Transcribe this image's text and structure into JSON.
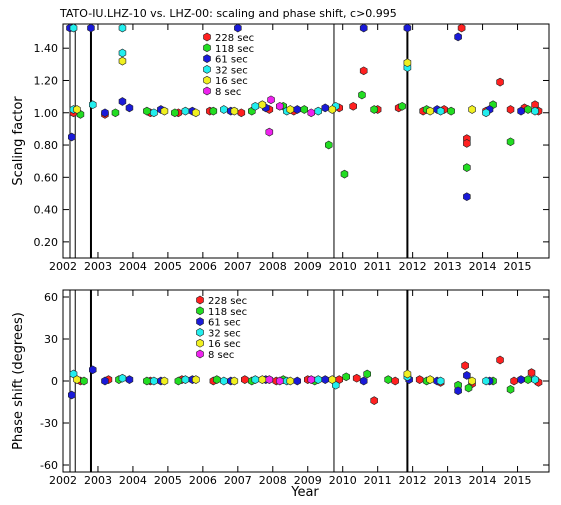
{
  "title": "TATO-IU.LHZ-10 vs. LHZ-00: scaling and phase shift, c>0.995",
  "xlabel": "Year",
  "x_ticks": [
    "2002",
    "2003",
    "2004",
    "2005",
    "2006",
    "2007",
    "2008",
    "2009",
    "2010",
    "2011",
    "2012",
    "2013",
    "2014",
    "2015"
  ],
  "colors": {
    "228 sec": "#ff2020",
    "118 sec": "#22dd22",
    "61 sec": "#1a1ad8",
    "32 sec": "#22eeee",
    "16 sec": "#f0f020",
    "8 sec": "#ee22ee"
  },
  "chart_data": [
    {
      "type": "scatter",
      "ylabel": "Scaling factor",
      "xlim": [
        2002.0,
        2015.9
      ],
      "ylim": [
        0.1,
        1.55
      ],
      "y_ticks": [
        "0.20",
        "0.40",
        "0.60",
        "0.80",
        "1.00",
        "1.20",
        "1.40"
      ],
      "legend": [
        "228 sec",
        "118 sec",
        "61 sec",
        "32 sec",
        "16 sec",
        "8 sec"
      ],
      "legend_placement": "top-center",
      "vlines": [
        2002.2,
        2002.35,
        2002.8,
        2009.75,
        2011.85
      ],
      "series": [
        {
          "name": "228 sec",
          "points": [
            [
              2002.3,
              1.0
            ],
            [
              2003.2,
              0.99
            ],
            [
              2004.5,
              1.0
            ],
            [
              2005.3,
              1.0
            ],
            [
              2006.2,
              1.01
            ],
            [
              2007.1,
              1.0
            ],
            [
              2007.9,
              1.02
            ],
            [
              2008.6,
              1.01
            ],
            [
              2009.9,
              1.03
            ],
            [
              2010.3,
              1.04
            ],
            [
              2010.6,
              1.26
            ],
            [
              2011.0,
              1.02
            ],
            [
              2011.6,
              1.03
            ],
            [
              2012.3,
              1.01
            ],
            [
              2012.9,
              1.02
            ],
            [
              2013.4,
              1.55
            ],
            [
              2013.55,
              0.84
            ],
            [
              2013.55,
              0.81
            ],
            [
              2014.1,
              1.01
            ],
            [
              2014.5,
              1.19
            ],
            [
              2014.8,
              1.02
            ],
            [
              2015.2,
              1.03
            ],
            [
              2015.5,
              1.05
            ],
            [
              2015.6,
              1.01
            ]
          ]
        },
        {
          "name": "118 sec",
          "points": [
            [
              2002.5,
              0.99
            ],
            [
              2003.5,
              1.0
            ],
            [
              2004.4,
              1.01
            ],
            [
              2005.2,
              1.0
            ],
            [
              2006.3,
              1.01
            ],
            [
              2007.4,
              1.01
            ],
            [
              2008.3,
              1.04
            ],
            [
              2008.9,
              1.02
            ],
            [
              2009.6,
              0.8
            ],
            [
              2010.05,
              0.62
            ],
            [
              2010.55,
              1.11
            ],
            [
              2010.9,
              1.02
            ],
            [
              2011.7,
              1.04
            ],
            [
              2012.4,
              1.02
            ],
            [
              2013.1,
              1.01
            ],
            [
              2013.55,
              0.66
            ],
            [
              2014.3,
              1.05
            ],
            [
              2014.8,
              0.82
            ],
            [
              2015.3,
              1.02
            ]
          ]
        },
        {
          "name": "61 sec",
          "points": [
            [
              2002.2,
              1.55
            ],
            [
              2002.25,
              0.85
            ],
            [
              2002.8,
              1.55
            ],
            [
              2003.2,
              1.0
            ],
            [
              2003.7,
              1.07
            ],
            [
              2003.9,
              1.03
            ],
            [
              2004.8,
              1.02
            ],
            [
              2005.7,
              1.01
            ],
            [
              2006.8,
              1.01
            ],
            [
              2007.0,
              1.55
            ],
            [
              2007.8,
              1.03
            ],
            [
              2008.7,
              1.02
            ],
            [
              2009.5,
              1.03
            ],
            [
              2010.6,
              1.55
            ],
            [
              2011.85,
              1.55
            ],
            [
              2012.7,
              1.02
            ],
            [
              2013.3,
              1.47
            ],
            [
              2013.55,
              0.48
            ],
            [
              2014.2,
              1.02
            ],
            [
              2015.1,
              1.01
            ]
          ]
        },
        {
          "name": "32 sec",
          "points": [
            [
              2002.3,
              1.55
            ],
            [
              2002.3,
              1.02
            ],
            [
              2002.85,
              1.05
            ],
            [
              2003.7,
              1.55
            ],
            [
              2003.7,
              1.37
            ],
            [
              2004.6,
              1.0
            ],
            [
              2005.5,
              1.01
            ],
            [
              2006.6,
              1.02
            ],
            [
              2007.5,
              1.04
            ],
            [
              2008.4,
              1.01
            ],
            [
              2009.3,
              1.01
            ],
            [
              2009.8,
              1.04
            ],
            [
              2011.85,
              1.28
            ],
            [
              2012.8,
              1.01
            ],
            [
              2014.1,
              1.0
            ],
            [
              2015.5,
              1.01
            ]
          ]
        },
        {
          "name": "16 sec",
          "points": [
            [
              2002.4,
              1.02
            ],
            [
              2003.7,
              1.32
            ],
            [
              2004.9,
              1.01
            ],
            [
              2005.8,
              1.0
            ],
            [
              2006.9,
              1.01
            ],
            [
              2007.7,
              1.05
            ],
            [
              2008.5,
              1.02
            ],
            [
              2009.7,
              1.02
            ],
            [
              2011.85,
              1.31
            ],
            [
              2012.5,
              1.01
            ],
            [
              2013.7,
              1.02
            ]
          ]
        },
        {
          "name": "8 sec",
          "points": [
            [
              2007.9,
              0.88
            ],
            [
              2007.95,
              1.08
            ],
            [
              2008.2,
              1.04
            ],
            [
              2009.1,
              1.0
            ]
          ]
        }
      ]
    },
    {
      "type": "scatter",
      "ylabel": "Phase shift (degrees)",
      "xlim": [
        2002.0,
        2015.9
      ],
      "ylim": [
        -65,
        65
      ],
      "y_ticks": [
        "-60",
        "-30",
        "0",
        "30",
        "60"
      ],
      "legend": [
        "228 sec",
        "118 sec",
        "61 sec",
        "32 sec",
        "16 sec",
        "8 sec"
      ],
      "legend_placement": "top-center",
      "vlines": [
        2002.2,
        2002.35,
        2002.8,
        2009.75,
        2011.85
      ],
      "series": [
        {
          "name": "228 sec",
          "points": [
            [
              2002.5,
              0
            ],
            [
              2003.3,
              1
            ],
            [
              2004.5,
              0
            ],
            [
              2005.4,
              1
            ],
            [
              2006.3,
              0
            ],
            [
              2007.2,
              1
            ],
            [
              2008.1,
              0
            ],
            [
              2009.0,
              1
            ],
            [
              2009.9,
              1
            ],
            [
              2010.4,
              2
            ],
            [
              2010.9,
              -14
            ],
            [
              2011.5,
              0
            ],
            [
              2012.2,
              1
            ],
            [
              2012.8,
              -1
            ],
            [
              2013.5,
              11
            ],
            [
              2013.7,
              -2
            ],
            [
              2014.5,
              15
            ],
            [
              2014.9,
              0
            ],
            [
              2015.4,
              6
            ],
            [
              2015.6,
              -1
            ]
          ]
        },
        {
          "name": "118 sec",
          "points": [
            [
              2002.6,
              0
            ],
            [
              2003.6,
              1
            ],
            [
              2004.4,
              0
            ],
            [
              2005.3,
              0
            ],
            [
              2006.4,
              1
            ],
            [
              2007.4,
              0
            ],
            [
              2008.3,
              1
            ],
            [
              2009.2,
              0
            ],
            [
              2010.1,
              3
            ],
            [
              2010.7,
              5
            ],
            [
              2011.3,
              1
            ],
            [
              2012.4,
              0
            ],
            [
              2013.3,
              -3
            ],
            [
              2013.6,
              -5
            ],
            [
              2014.3,
              0
            ],
            [
              2014.8,
              -6
            ],
            [
              2015.3,
              1
            ]
          ]
        },
        {
          "name": "61 sec",
          "points": [
            [
              2002.25,
              -10
            ],
            [
              2002.85,
              8
            ],
            [
              2003.2,
              0
            ],
            [
              2003.9,
              1
            ],
            [
              2004.8,
              0
            ],
            [
              2005.7,
              1
            ],
            [
              2006.8,
              0
            ],
            [
              2007.8,
              1
            ],
            [
              2008.7,
              0
            ],
            [
              2009.5,
              1
            ],
            [
              2010.6,
              0
            ],
            [
              2011.9,
              1
            ],
            [
              2012.7,
              0
            ],
            [
              2013.3,
              -7
            ],
            [
              2013.55,
              4
            ],
            [
              2014.2,
              0
            ],
            [
              2015.1,
              1
            ]
          ]
        },
        {
          "name": "32 sec",
          "points": [
            [
              2002.3,
              5
            ],
            [
              2003.7,
              2
            ],
            [
              2004.6,
              0
            ],
            [
              2005.5,
              1
            ],
            [
              2006.6,
              0
            ],
            [
              2007.5,
              1
            ],
            [
              2008.4,
              0
            ],
            [
              2009.3,
              1
            ],
            [
              2009.8,
              -3
            ],
            [
              2011.85,
              3
            ],
            [
              2012.8,
              0
            ],
            [
              2014.1,
              0
            ],
            [
              2015.5,
              1
            ]
          ]
        },
        {
          "name": "16 sec",
          "points": [
            [
              2002.4,
              1
            ],
            [
              2004.9,
              0
            ],
            [
              2005.8,
              1
            ],
            [
              2006.9,
              0
            ],
            [
              2007.7,
              1
            ],
            [
              2008.5,
              0
            ],
            [
              2009.7,
              1
            ],
            [
              2011.85,
              5
            ],
            [
              2012.5,
              1
            ],
            [
              2013.7,
              0
            ]
          ]
        },
        {
          "name": "8 sec",
          "points": [
            [
              2007.9,
              1
            ],
            [
              2008.2,
              0
            ],
            [
              2009.1,
              1
            ]
          ]
        }
      ]
    }
  ]
}
